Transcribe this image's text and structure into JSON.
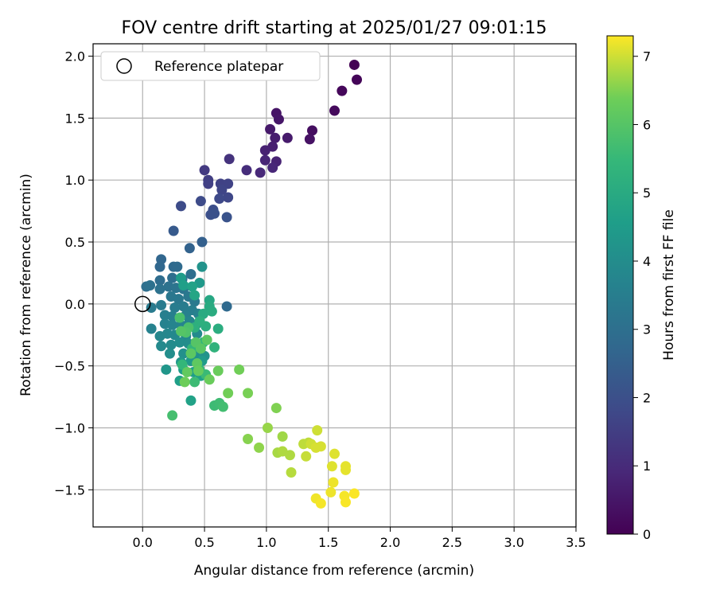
{
  "chart_data": {
    "type": "scatter",
    "title": "FOV centre drift starting at 2025/01/27 09:01:15",
    "xlabel": "Angular distance from reference (arcmin)",
    "ylabel": "Rotation from reference (arcmin)",
    "xlim": [
      -0.4,
      3.5
    ],
    "ylim": [
      -1.8,
      2.1
    ],
    "x_ticks": [
      0.0,
      0.5,
      1.0,
      1.5,
      2.0,
      2.5,
      3.0,
      3.5
    ],
    "x_tick_labels": [
      "0.0",
      "0.5",
      "1.0",
      "1.5",
      "2.0",
      "2.5",
      "3.0",
      "3.5"
    ],
    "y_ticks": [
      -1.5,
      -1.0,
      -0.5,
      0.0,
      0.5,
      1.0,
      1.5,
      2.0
    ],
    "y_tick_labels": [
      "−1.5",
      "−1.0",
      "−0.5",
      "0.0",
      "0.5",
      "1.0",
      "1.5",
      "2.0"
    ],
    "grid": true,
    "legend": {
      "placement": "upper-left",
      "entries": [
        "Reference platepar"
      ]
    },
    "reference_point": {
      "x": 0.0,
      "y": 0.0,
      "label": "Reference platepar"
    },
    "colorbar": {
      "label": "Hours from first FF file",
      "range": [
        0,
        7.3
      ],
      "ticks": [
        0,
        1,
        2,
        3,
        4,
        5,
        6,
        7
      ],
      "tick_labels": [
        "0",
        "1",
        "2",
        "3",
        "4",
        "5",
        "6",
        "7"
      ],
      "colormap": "viridis"
    },
    "points": [
      [
        1.71,
        1.93,
        0.0
      ],
      [
        1.73,
        1.81,
        0.1
      ],
      [
        1.61,
        1.72,
        0.15
      ],
      [
        1.55,
        1.56,
        0.2
      ],
      [
        1.37,
        1.4,
        0.3
      ],
      [
        1.35,
        1.33,
        0.4
      ],
      [
        1.08,
        1.54,
        0.45
      ],
      [
        1.1,
        1.49,
        0.5
      ],
      [
        1.03,
        1.41,
        0.55
      ],
      [
        1.17,
        1.34,
        0.6
      ],
      [
        1.07,
        1.34,
        0.65
      ],
      [
        1.05,
        1.27,
        0.7
      ],
      [
        0.99,
        1.24,
        0.75
      ],
      [
        1.08,
        1.15,
        0.8
      ],
      [
        0.99,
        1.16,
        0.85
      ],
      [
        1.05,
        1.1,
        0.9
      ],
      [
        0.95,
        1.06,
        0.95
      ],
      [
        0.84,
        1.08,
        1.05
      ],
      [
        0.7,
        1.17,
        1.2
      ],
      [
        0.5,
        1.08,
        1.4
      ],
      [
        0.53,
        1.0,
        1.5
      ],
      [
        0.53,
        0.97,
        1.55
      ],
      [
        0.63,
        0.97,
        1.6
      ],
      [
        0.69,
        0.97,
        1.65
      ],
      [
        0.64,
        0.92,
        1.7
      ],
      [
        0.69,
        0.86,
        1.75
      ],
      [
        0.62,
        0.85,
        1.8
      ],
      [
        0.47,
        0.83,
        1.85
      ],
      [
        0.31,
        0.79,
        1.9
      ],
      [
        0.57,
        0.76,
        1.95
      ],
      [
        0.55,
        0.72,
        2.0
      ],
      [
        0.58,
        0.73,
        2.05
      ],
      [
        0.68,
        0.7,
        2.1
      ],
      [
        0.25,
        0.59,
        2.3
      ],
      [
        0.48,
        0.5,
        2.5
      ],
      [
        0.38,
        0.45,
        2.6
      ],
      [
        0.15,
        0.36,
        2.7
      ],
      [
        0.14,
        0.3,
        2.75
      ],
      [
        0.25,
        0.3,
        2.8
      ],
      [
        0.28,
        0.3,
        2.85
      ],
      [
        0.14,
        0.19,
        2.9
      ],
      [
        0.24,
        0.21,
        2.95
      ],
      [
        0.32,
        0.2,
        3.0
      ],
      [
        0.39,
        0.24,
        3.0
      ],
      [
        0.03,
        0.14,
        3.0
      ],
      [
        0.06,
        0.15,
        3.05
      ],
      [
        0.14,
        0.12,
        3.1
      ],
      [
        0.21,
        0.14,
        3.1
      ],
      [
        0.27,
        0.13,
        3.15
      ],
      [
        0.33,
        0.12,
        3.2
      ],
      [
        0.23,
        0.06,
        3.25
      ],
      [
        0.29,
        0.04,
        3.3
      ],
      [
        0.37,
        0.06,
        3.3
      ],
      [
        0.42,
        0.02,
        3.35
      ],
      [
        0.15,
        -0.01,
        3.4
      ],
      [
        0.68,
        -0.02,
        2.8
      ],
      [
        0.07,
        -0.03,
        3.4
      ],
      [
        0.26,
        -0.03,
        3.45
      ],
      [
        0.33,
        -0.02,
        3.45
      ],
      [
        0.4,
        -0.05,
        3.5
      ],
      [
        0.18,
        -0.09,
        3.55
      ],
      [
        0.24,
        -0.1,
        3.55
      ],
      [
        0.35,
        -0.09,
        3.6
      ],
      [
        0.45,
        -0.08,
        3.6
      ],
      [
        0.07,
        -0.2,
        3.65
      ],
      [
        0.18,
        -0.16,
        3.65
      ],
      [
        0.24,
        -0.17,
        3.7
      ],
      [
        0.31,
        -0.17,
        3.7
      ],
      [
        0.38,
        -0.14,
        3.75
      ],
      [
        0.43,
        -0.17,
        3.75
      ],
      [
        0.14,
        -0.26,
        3.8
      ],
      [
        0.2,
        -0.24,
        3.8
      ],
      [
        0.26,
        -0.25,
        3.85
      ],
      [
        0.35,
        -0.26,
        3.85
      ],
      [
        0.44,
        -0.24,
        3.9
      ],
      [
        0.15,
        -0.34,
        3.9
      ],
      [
        0.23,
        -0.33,
        3.95
      ],
      [
        0.3,
        -0.31,
        4.0
      ],
      [
        0.37,
        -0.32,
        4.0
      ],
      [
        0.22,
        -0.4,
        4.05
      ],
      [
        0.33,
        -0.4,
        4.1
      ],
      [
        0.42,
        -0.41,
        4.15
      ],
      [
        0.5,
        -0.42,
        4.2
      ],
      [
        0.19,
        -0.53,
        4.3
      ],
      [
        0.31,
        -0.47,
        4.35
      ],
      [
        0.39,
        -0.46,
        4.4
      ],
      [
        0.48,
        -0.46,
        4.45
      ],
      [
        0.33,
        -0.53,
        4.5
      ],
      [
        0.41,
        -0.55,
        4.55
      ],
      [
        0.3,
        -0.62,
        4.6
      ],
      [
        0.47,
        -0.58,
        4.65
      ],
      [
        0.39,
        -0.78,
        4.7
      ],
      [
        0.48,
        0.3,
        4.2
      ],
      [
        0.46,
        0.17,
        4.4
      ],
      [
        0.31,
        0.21,
        4.5
      ],
      [
        0.33,
        0.15,
        4.6
      ],
      [
        0.4,
        0.14,
        4.7
      ],
      [
        0.42,
        0.07,
        4.8
      ],
      [
        0.54,
        0.03,
        4.9
      ],
      [
        0.54,
        -0.02,
        5.0
      ],
      [
        0.49,
        -0.08,
        5.0
      ],
      [
        0.56,
        -0.06,
        5.05
      ],
      [
        0.61,
        -0.2,
        5.1
      ],
      [
        0.51,
        -0.18,
        5.15
      ],
      [
        0.46,
        -0.14,
        5.2
      ],
      [
        0.42,
        -0.19,
        5.2
      ],
      [
        0.58,
        -0.35,
        5.3
      ],
      [
        0.49,
        -0.31,
        5.35
      ],
      [
        0.4,
        -0.36,
        5.4
      ],
      [
        0.32,
        -0.49,
        5.45
      ],
      [
        0.46,
        -0.53,
        5.5
      ],
      [
        0.51,
        -0.57,
        5.55
      ],
      [
        0.42,
        -0.63,
        5.6
      ],
      [
        0.58,
        -0.82,
        5.6
      ],
      [
        0.62,
        -0.8,
        5.65
      ],
      [
        0.65,
        -0.83,
        5.7
      ],
      [
        0.24,
        -0.9,
        5.75
      ],
      [
        0.3,
        -0.11,
        5.8
      ],
      [
        0.37,
        -0.19,
        5.85
      ],
      [
        0.35,
        -0.23,
        5.9
      ],
      [
        0.31,
        -0.22,
        6.0
      ],
      [
        0.43,
        -0.31,
        6.0
      ],
      [
        0.47,
        -0.36,
        6.05
      ],
      [
        0.52,
        -0.29,
        6.1
      ],
      [
        0.39,
        -0.4,
        6.1
      ],
      [
        0.44,
        -0.48,
        6.15
      ],
      [
        0.36,
        -0.55,
        6.2
      ],
      [
        0.45,
        -0.54,
        6.25
      ],
      [
        0.54,
        -0.61,
        6.3
      ],
      [
        0.61,
        -0.54,
        6.3
      ],
      [
        0.34,
        -0.63,
        6.35
      ],
      [
        0.69,
        -0.72,
        6.4
      ],
      [
        0.78,
        -0.53,
        6.4
      ],
      [
        0.85,
        -0.72,
        6.45
      ],
      [
        1.08,
        -0.84,
        6.5
      ],
      [
        0.85,
        -1.09,
        6.55
      ],
      [
        0.94,
        -1.16,
        6.6
      ],
      [
        1.01,
        -1.0,
        6.65
      ],
      [
        1.13,
        -1.07,
        6.7
      ],
      [
        1.09,
        -1.2,
        6.75
      ],
      [
        1.13,
        -1.19,
        6.8
      ],
      [
        1.19,
        -1.22,
        6.8
      ],
      [
        1.2,
        -1.36,
        6.85
      ],
      [
        1.3,
        -1.13,
        6.9
      ],
      [
        1.34,
        -1.12,
        6.9
      ],
      [
        1.32,
        -1.23,
        6.95
      ],
      [
        1.36,
        -1.13,
        7.0
      ],
      [
        1.41,
        -1.02,
        7.0
      ],
      [
        1.4,
        -1.16,
        7.05
      ],
      [
        1.44,
        -1.15,
        7.05
      ],
      [
        1.55,
        -1.21,
        7.1
      ],
      [
        1.53,
        -1.31,
        7.1
      ],
      [
        1.64,
        -1.31,
        7.15
      ],
      [
        1.64,
        -1.34,
        7.15
      ],
      [
        1.54,
        -1.44,
        7.2
      ],
      [
        1.52,
        -1.52,
        7.2
      ],
      [
        1.4,
        -1.57,
        7.22
      ],
      [
        1.44,
        -1.61,
        7.25
      ],
      [
        1.63,
        -1.55,
        7.25
      ],
      [
        1.64,
        -1.6,
        7.27
      ],
      [
        1.71,
        -1.53,
        7.28
      ]
    ]
  }
}
